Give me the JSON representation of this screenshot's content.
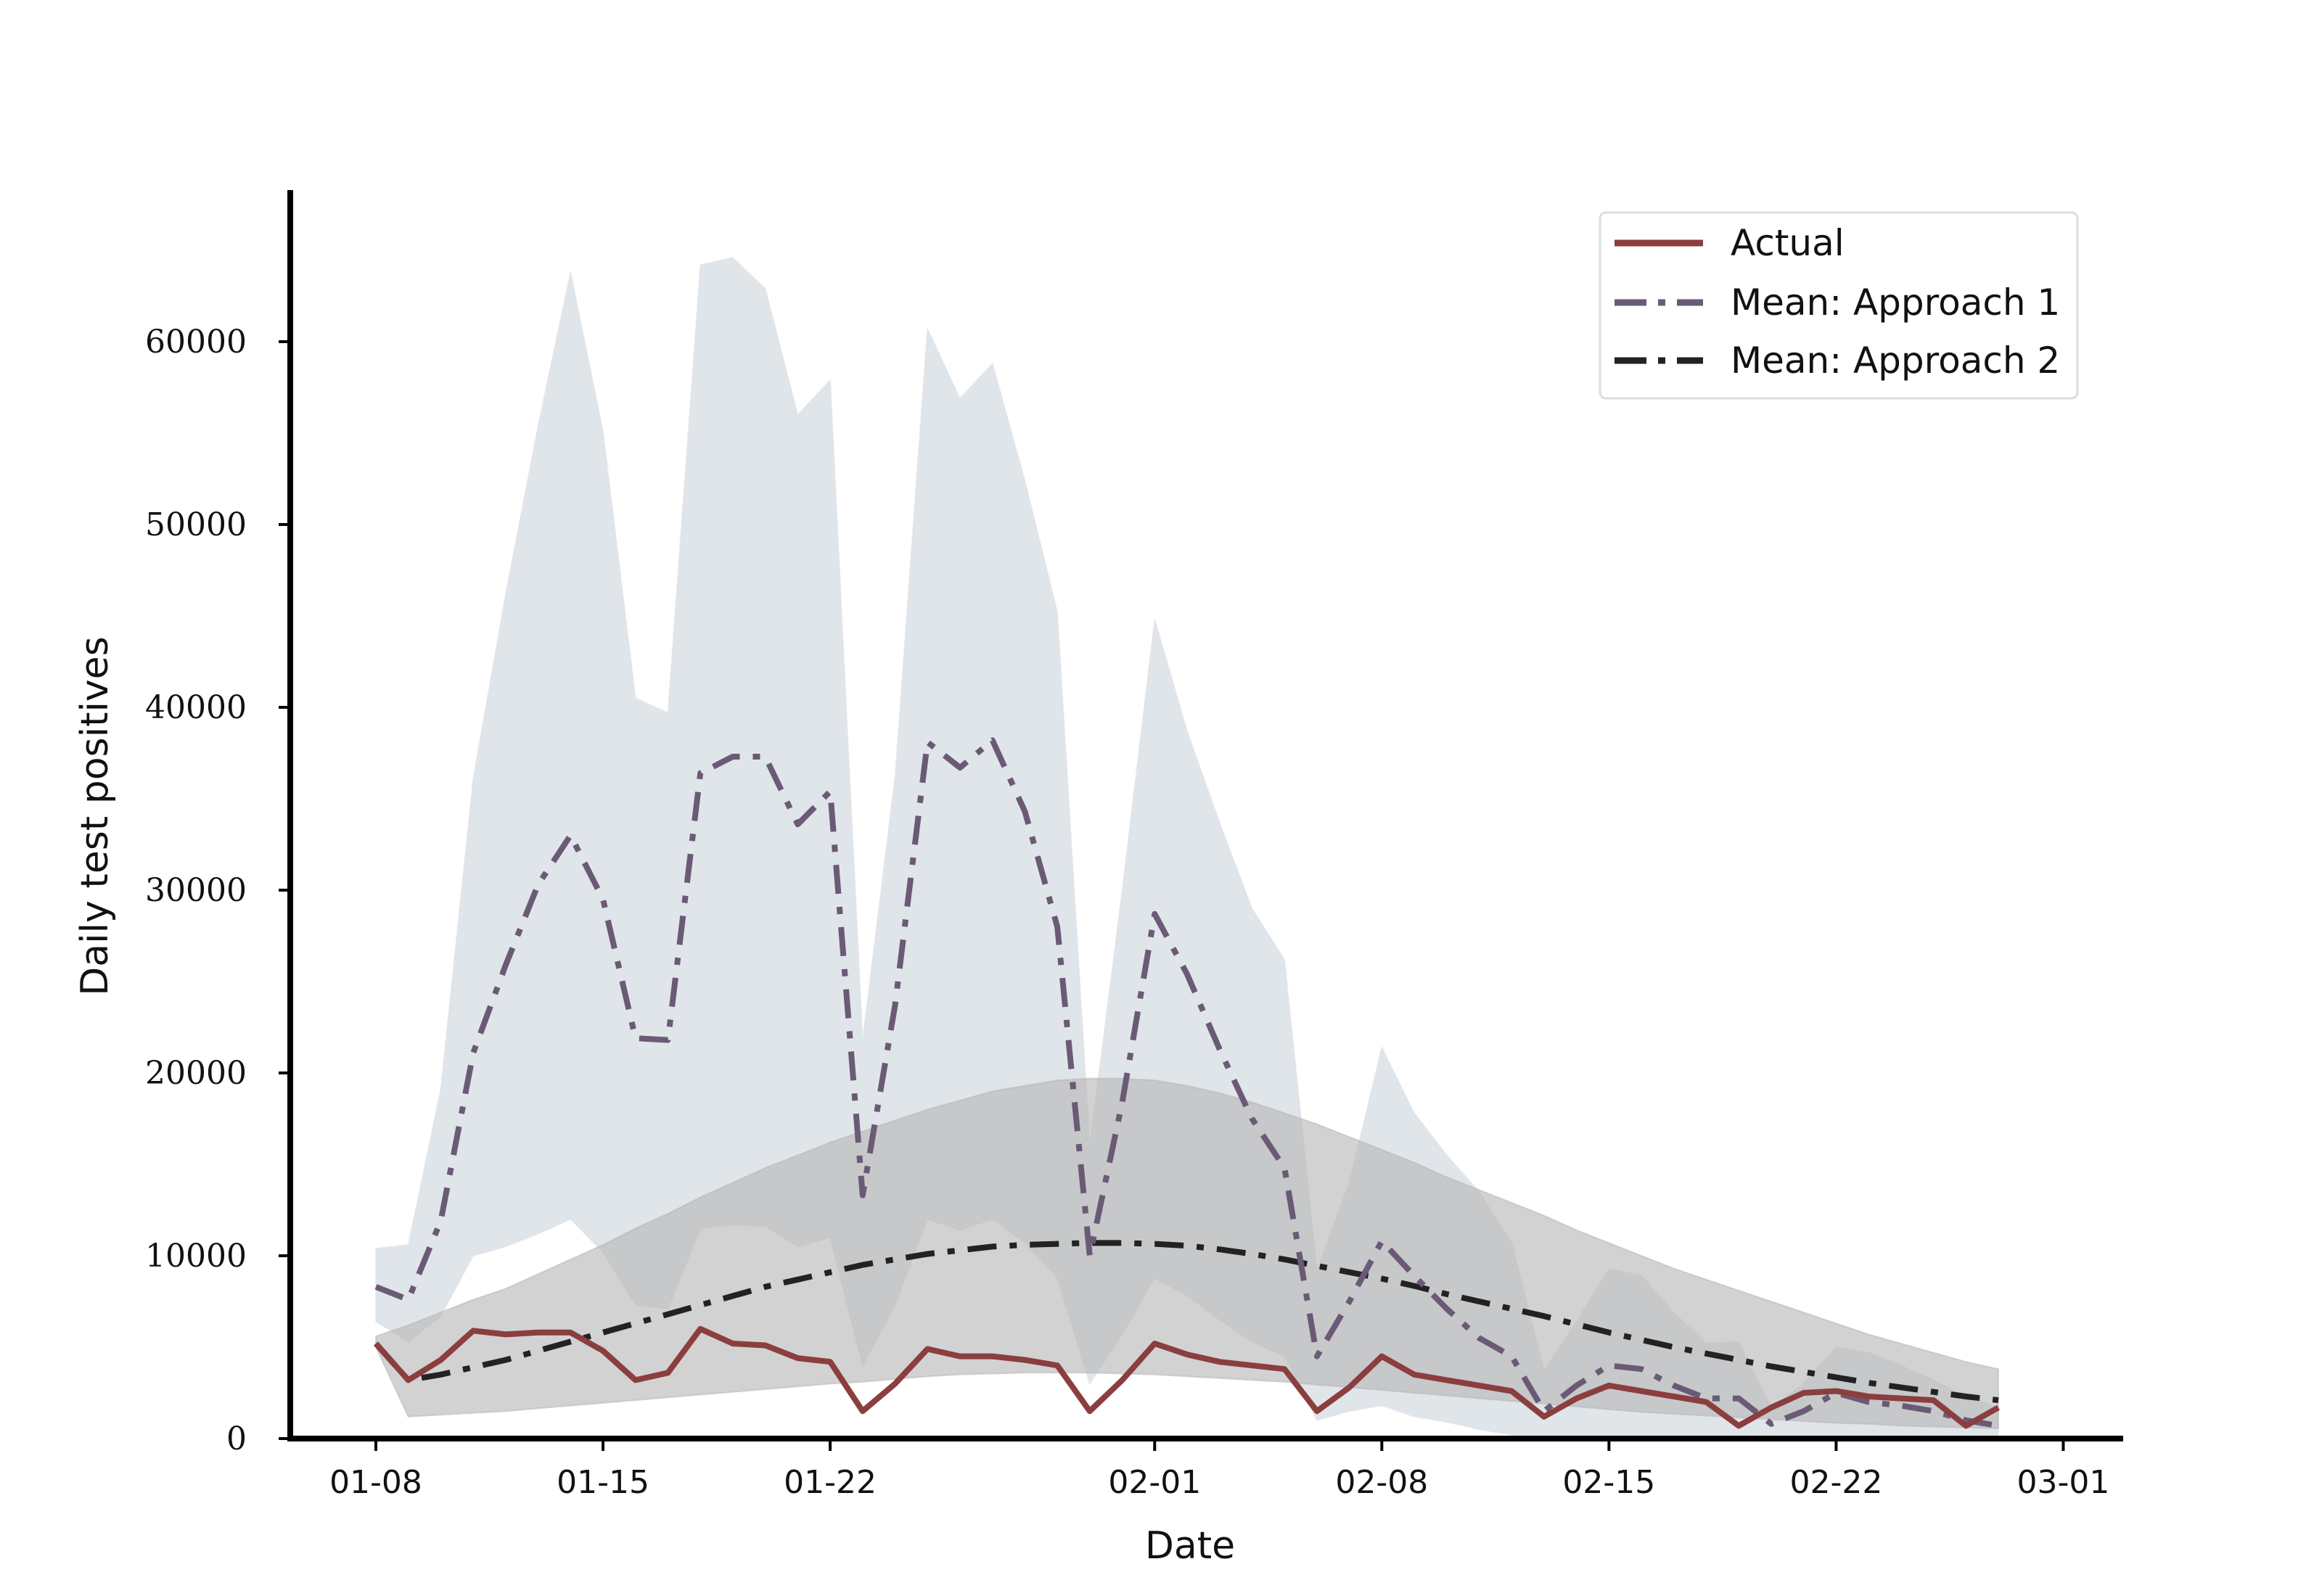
{
  "chart_data": {
    "type": "line",
    "xlabel": "Date",
    "ylabel": "Daily test positives",
    "ylim": [
      0,
      67500
    ],
    "y_ticks": [
      "0",
      "10000",
      "20000",
      "30000",
      "40000",
      "50000",
      "60000"
    ],
    "x_ticks": [
      "01-08",
      "01-15",
      "01-22",
      "02-01",
      "02-08",
      "02-15",
      "02-22",
      "03-01"
    ],
    "x_tick_days": [
      0,
      7,
      14,
      24,
      31,
      38,
      45,
      52
    ],
    "grid": false,
    "legend_position": "top-right",
    "colors": {
      "actual": "#8b3e3e",
      "approach1": "#6b5a76",
      "approach2": "#222222",
      "band1": "#dde2e8",
      "band2": "#b4b4b4"
    },
    "series": [
      {
        "name": "Actual",
        "x_day": [
          0,
          1,
          2,
          3,
          4,
          5,
          6,
          7,
          8,
          9,
          10,
          11,
          12,
          13,
          14,
          15,
          16,
          17,
          18,
          19,
          20,
          21,
          22,
          23,
          24,
          25,
          26,
          27,
          28,
          29,
          30,
          31,
          32,
          33,
          34,
          35,
          36,
          37,
          38,
          39,
          40,
          41,
          42,
          43,
          44,
          45,
          46,
          47,
          48,
          49,
          50
        ],
        "values": [
          5200,
          3200,
          4300,
          5900,
          5700,
          5800,
          5800,
          4800,
          3200,
          3600,
          6000,
          5200,
          5100,
          4400,
          4200,
          1500,
          3000,
          4900,
          4500,
          4500,
          4300,
          4000,
          1500,
          3200,
          5200,
          4600,
          4200,
          4000,
          3800,
          1500,
          2800,
          4500,
          3500,
          3200,
          2900,
          2600,
          1200,
          2200,
          2900,
          2600,
          2300,
          2000,
          700,
          1700,
          2500,
          2600,
          2300,
          2200,
          2100,
          700,
          1700
        ]
      },
      {
        "name": "Mean: Approach 1",
        "x_day": [
          0,
          1,
          2,
          3,
          4,
          5,
          6,
          7,
          8,
          9,
          10,
          11,
          12,
          13,
          14,
          15,
          16,
          17,
          18,
          19,
          20,
          21,
          22,
          23,
          24,
          25,
          26,
          27,
          28,
          29,
          30,
          31,
          32,
          33,
          34,
          35,
          36,
          37,
          38,
          39,
          40,
          41,
          42,
          43,
          44,
          45,
          46,
          47,
          48,
          49,
          50
        ],
        "values": [
          8300,
          7600,
          11900,
          21100,
          25900,
          30300,
          33000,
          29500,
          21900,
          21800,
          36400,
          37300,
          37300,
          33600,
          35400,
          13300,
          23700,
          38100,
          36700,
          38200,
          34300,
          28000,
          10000,
          18400,
          28700,
          25400,
          21300,
          17500,
          14800,
          4500,
          7500,
          10800,
          8900,
          7100,
          5500,
          4500,
          1500,
          2900,
          4000,
          3800,
          2900,
          2200,
          2200,
          800,
          1500,
          2500,
          2000,
          1800,
          1500,
          1000,
          700
        ]
      },
      {
        "name": "Mean: Approach 2",
        "x_day": [
          0,
          1,
          2,
          3,
          4,
          5,
          6,
          7,
          8,
          9,
          10,
          11,
          12,
          13,
          14,
          15,
          16,
          17,
          18,
          19,
          20,
          21,
          22,
          23,
          24,
          25,
          26,
          27,
          28,
          29,
          30,
          31,
          32,
          33,
          34,
          35,
          36,
          37,
          38,
          39,
          40,
          41,
          42,
          43,
          44,
          45,
          46,
          47,
          48,
          49,
          50
        ],
        "values": [
          5200,
          3200,
          3500,
          3900,
          4300,
          4800,
          5300,
          5800,
          6300,
          6800,
          7300,
          7800,
          8300,
          8700,
          9100,
          9500,
          9800,
          10100,
          10300,
          10500,
          10600,
          10650,
          10700,
          10700,
          10650,
          10550,
          10350,
          10100,
          9800,
          9450,
          9100,
          8750,
          8350,
          7900,
          7500,
          7100,
          6700,
          6250,
          5800,
          5400,
          5000,
          4650,
          4300,
          3950,
          3650,
          3350,
          3050,
          2800,
          2550,
          2300,
          2100
        ]
      }
    ],
    "bands": [
      {
        "series": "Mean: Approach 1",
        "x_day": [
          0,
          1,
          2,
          3,
          4,
          5,
          6,
          7,
          8,
          9,
          10,
          11,
          12,
          13,
          14,
          15,
          16,
          17,
          18,
          19,
          20,
          21,
          22,
          23,
          24,
          25,
          26,
          27,
          28,
          29,
          30,
          31,
          32,
          33,
          34,
          35,
          36,
          37,
          38,
          39,
          40,
          41,
          42,
          43,
          44,
          45,
          46,
          47,
          48,
          49,
          50
        ],
        "upper": [
          10400,
          10600,
          19100,
          36100,
          46200,
          55400,
          63800,
          55100,
          40500,
          39700,
          64200,
          64600,
          62900,
          56000,
          57900,
          21800,
          36200,
          60700,
          56900,
          58800,
          52400,
          45200,
          16000,
          30000,
          44800,
          38700,
          33700,
          29000,
          26200,
          9200,
          14000,
          21400,
          17800,
          15500,
          13500,
          10700,
          3700,
          6400,
          9300,
          8900,
          6900,
          5200,
          5300,
          1700,
          3000,
          5000,
          4700,
          4000,
          3200,
          2300,
          1700
        ],
        "lower": [
          6400,
          5300,
          6700,
          10000,
          10500,
          11200,
          12000,
          10200,
          7300,
          7100,
          11500,
          11700,
          11600,
          10500,
          11000,
          4000,
          7300,
          12000,
          11400,
          12000,
          10700,
          8800,
          3000,
          5700,
          8800,
          7800,
          6500,
          5300,
          4500,
          1000,
          1500,
          1800,
          1200,
          900,
          500,
          200,
          0,
          0,
          0,
          0,
          0,
          0,
          0,
          0,
          0,
          0,
          0,
          0,
          0,
          0,
          0
        ]
      },
      {
        "series": "Mean: Approach 2",
        "x_day": [
          0,
          1,
          2,
          3,
          4,
          5,
          6,
          7,
          8,
          9,
          10,
          11,
          12,
          13,
          14,
          15,
          16,
          17,
          18,
          19,
          20,
          21,
          22,
          23,
          24,
          25,
          26,
          27,
          28,
          29,
          30,
          31,
          32,
          33,
          34,
          35,
          36,
          37,
          38,
          39,
          40,
          41,
          42,
          43,
          44,
          45,
          46,
          47,
          48,
          49,
          50
        ],
        "upper": [
          5600,
          6200,
          6900,
          7600,
          8200,
          9000,
          9800,
          10600,
          11500,
          12300,
          13200,
          14000,
          14800,
          15500,
          16200,
          16800,
          17400,
          18000,
          18500,
          19000,
          19300,
          19600,
          19700,
          19700,
          19600,
          19300,
          18900,
          18400,
          17800,
          17200,
          16500,
          15800,
          15100,
          14300,
          13600,
          12900,
          12200,
          11400,
          10700,
          10000,
          9300,
          8700,
          8100,
          7500,
          6900,
          6300,
          5700,
          5200,
          4700,
          4200,
          3800
        ],
        "lower": [
          5000,
          1200,
          1300,
          1400,
          1500,
          1650,
          1800,
          1950,
          2100,
          2250,
          2400,
          2550,
          2700,
          2850,
          3000,
          3100,
          3250,
          3400,
          3500,
          3550,
          3600,
          3600,
          3600,
          3550,
          3500,
          3400,
          3300,
          3200,
          3100,
          2950,
          2800,
          2650,
          2500,
          2350,
          2200,
          2050,
          1900,
          1750,
          1600,
          1450,
          1350,
          1250,
          1150,
          1050,
          950,
          850,
          800,
          700,
          650,
          600,
          550
        ]
      }
    ]
  }
}
